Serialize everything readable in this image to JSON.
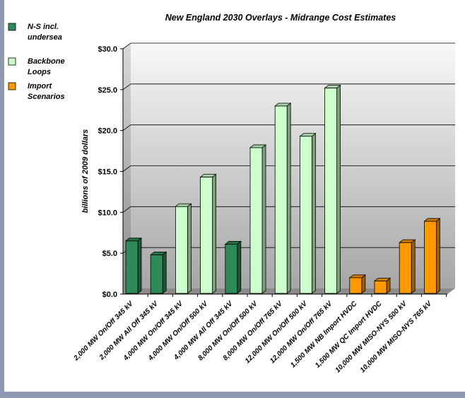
{
  "chart_data": {
    "type": "bar",
    "title": "New England 2030 Overlays - Midrange Cost Estimates",
    "ylabel": "billions of 2009 dollars",
    "xlabel": "",
    "ylim": [
      0,
      30
    ],
    "yticks": [
      "$0.0",
      "$5.0",
      "$10.0",
      "$15.0",
      "$20.0",
      "$25.0",
      "$30.0"
    ],
    "grid": true,
    "legend_position": "left",
    "categories": [
      "2,000 MW On/Off 345 kV",
      "2,000 MW All Off 345 kV",
      "4,000 MW On/Off 345 kV",
      "4,000 MW On/Off 500 kV",
      "4,000 MW All Off 345 kV",
      "8,000 MW On/Off 500 kV",
      "8,000 MW On/Off 765 kV",
      "12,000 MW On/Off 500 kV",
      "12,000 MW On/Off 765 kV",
      "1,500 MW NB Import HVDC",
      "1,500 MW QC Import HVDC",
      "10,000 MW MISO-NYS 500 kV",
      "10,000 MW MISO-NYS 765 kV"
    ],
    "values": [
      6.5,
      4.8,
      10.7,
      14.3,
      6.1,
      17.9,
      23.0,
      19.3,
      25.2,
      2.0,
      1.6,
      6.3,
      8.9
    ],
    "bar_groups": [
      0,
      0,
      1,
      1,
      0,
      1,
      1,
      1,
      1,
      2,
      2,
      2,
      2
    ],
    "legend": [
      {
        "label": "N-S incl. undersea",
        "lines": [
          "N-S incl.",
          "undersea"
        ],
        "color": "#2e8b57"
      },
      {
        "label": "Backbone Loops",
        "lines": [
          "Backbone",
          "Loops"
        ],
        "color": "#ccffcc"
      },
      {
        "label": "Import Scenarios",
        "lines": [
          "Import",
          "Scenarios"
        ],
        "color": "#ff9900"
      }
    ]
  }
}
